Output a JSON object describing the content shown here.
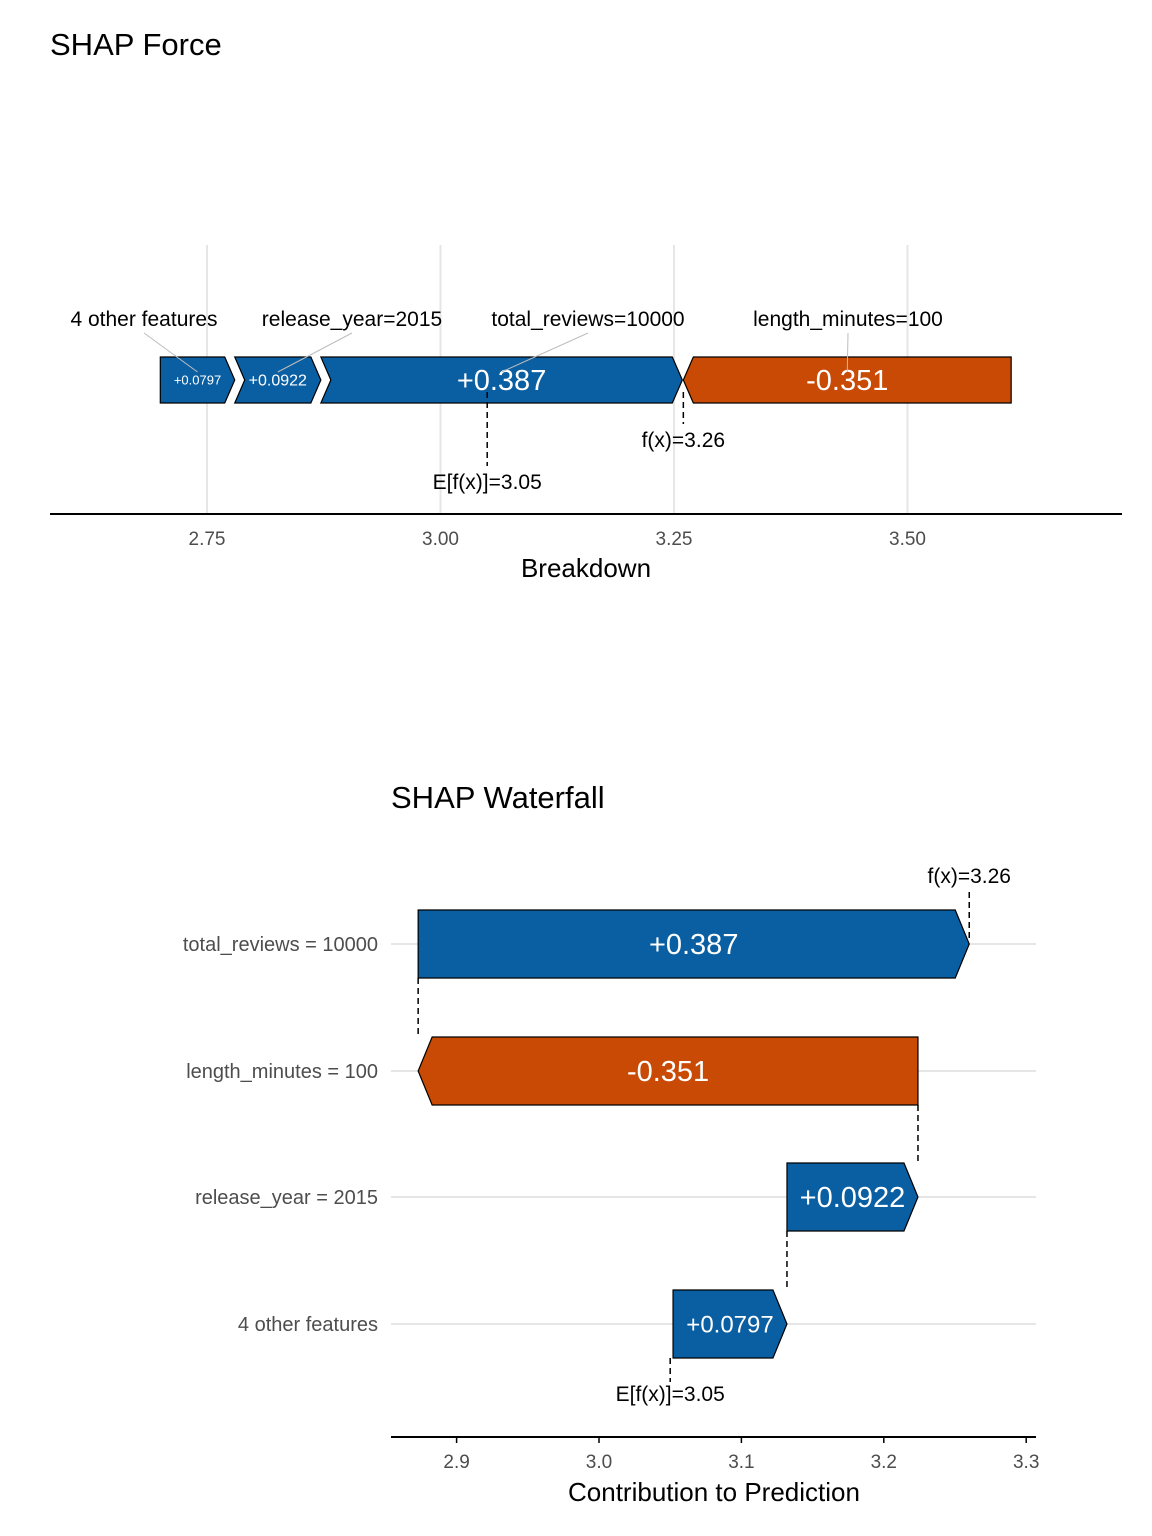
{
  "chart_data": [
    {
      "type": "force",
      "title": "SHAP Force",
      "xlabel": "Breakdown",
      "xlim": [
        2.6,
        3.7
      ],
      "xticks": [
        2.75,
        3.0,
        3.25,
        3.5
      ],
      "xtick_labels": [
        "2.75",
        "3.00",
        "3.25",
        "3.50"
      ],
      "grid": true,
      "base_value": 3.05,
      "base_label": "E[f(x)]=3.05",
      "prediction": 3.26,
      "prediction_label": "f(x)=3.26",
      "segments": [
        {
          "feature": "4 other features",
          "value": 0.0797,
          "label": "+0.0797",
          "start": 2.7,
          "end": 2.7797
        },
        {
          "feature": "release_year=2015",
          "value": 0.0922,
          "label": "+0.0922",
          "start": 2.7797,
          "end": 2.8719
        },
        {
          "feature": "total_reviews=10000",
          "value": 0.387,
          "label": "+0.387",
          "start": 2.8719,
          "end": 3.2589
        },
        {
          "feature": "length_minutes=100",
          "value": -0.351,
          "label": "-0.351",
          "start": 3.26,
          "end": 3.611
        }
      ]
    },
    {
      "type": "waterfall",
      "title": "SHAP Waterfall",
      "xlabel": "Contribution to Prediction",
      "xlim": [
        2.855,
        3.31
      ],
      "xticks": [
        2.9,
        3.0,
        3.1,
        3.2,
        3.3
      ],
      "xtick_labels": [
        "2.9",
        "3.0",
        "3.1",
        "3.2",
        "3.3"
      ],
      "grid": true,
      "base_value": 3.05,
      "base_label": "E[f(x)]=3.05",
      "prediction": 3.26,
      "prediction_label": "f(x)=3.26",
      "bars": [
        {
          "feature": "total_reviews = 10000",
          "value": 0.387,
          "label": "+0.387",
          "start": 2.873,
          "end": 3.26
        },
        {
          "feature": "length_minutes = 100",
          "value": -0.351,
          "label": "-0.351",
          "start": 3.224,
          "end": 2.873
        },
        {
          "feature": "release_year = 2015",
          "value": 0.0922,
          "label": "+0.0922",
          "start": 3.132,
          "end": 3.224
        },
        {
          "feature": "4 other features",
          "value": 0.0797,
          "label": "+0.0797",
          "start": 3.052,
          "end": 3.132
        }
      ]
    }
  ],
  "colors": {
    "positive": "#0a5fa3",
    "negative": "#c94a04",
    "grid": "#e6e6e6",
    "axis": "#000000",
    "text": "#000000",
    "tick_text": "#4d4d4d"
  }
}
